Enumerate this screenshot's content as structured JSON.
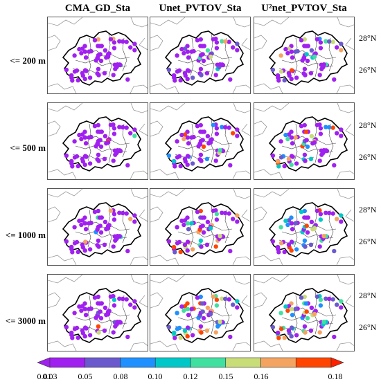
{
  "columns": [
    "CMA_GD_Sta",
    "Unet_PVTOV_Sta",
    "U²net_PVTOV_Sta"
  ],
  "rows": [
    "<= 200 m",
    "<= 500 m",
    "<= 1000 m",
    "<= 3000 m"
  ],
  "lat_labels": [
    "28°N",
    "26°N"
  ],
  "colorbar": {
    "ticks": [
      "0.01",
      "0.03",
      "0.05",
      "0.08",
      "0.10",
      "0.12",
      "0.15",
      "0.16",
      "0.18"
    ],
    "colors": [
      "#a020f0",
      "#6a5acd",
      "#1e90ff",
      "#00c8c8",
      "#40e0a0",
      "#c8dc78",
      "#f4a460",
      "#ff4500"
    ],
    "under_color": "#a020f0",
    "over_color": "#ff2000"
  }
}
